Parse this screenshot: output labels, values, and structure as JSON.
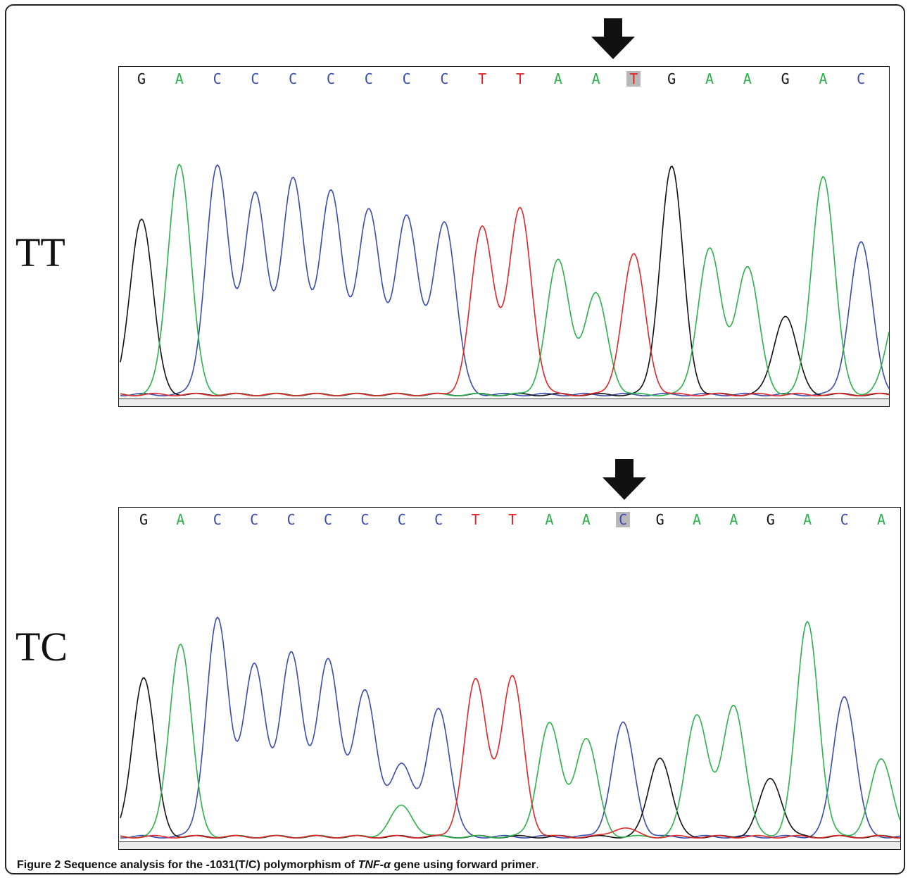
{
  "caption": {
    "label": "Figure 2",
    "text_before": "Sequence analysis for the -1031(T/C) polymorphism of",
    "gene": "TNF-α",
    "text_after": "gene using forward primer"
  },
  "colors": {
    "A": "#2bb24c",
    "C": "#3a4bb0",
    "G": "#111111",
    "T": "#e02626",
    "highlight": "#b8b8b8"
  },
  "chart_data": [
    {
      "type": "line",
      "genotype": "TT",
      "bases": [
        "G",
        "A",
        "C",
        "C",
        "C",
        "C",
        "C",
        "C",
        "C",
        "T",
        "T",
        "A",
        "A",
        "T",
        "G",
        "A",
        "A",
        "G",
        "A",
        "C",
        "A"
      ],
      "highlight_index": 13,
      "peak_heights": [
        0.58,
        0.76,
        0.75,
        0.66,
        0.71,
        0.67,
        0.61,
        0.59,
        0.57,
        0.55,
        0.61,
        0.44,
        0.33,
        0.46,
        0.75,
        0.48,
        0.42,
        0.26,
        0.72,
        0.5,
        0.3
      ]
    },
    {
      "type": "line",
      "genotype": "TC",
      "bases": [
        "G",
        "A",
        "C",
        "C",
        "C",
        "C",
        "C",
        "C",
        "C",
        "T",
        "T",
        "A",
        "A",
        "C",
        "G",
        "A",
        "A",
        "G",
        "A",
        "C",
        "A"
      ],
      "highlight_index": 13,
      "peak_heights": [
        0.52,
        0.63,
        0.71,
        0.56,
        0.6,
        0.58,
        0.48,
        0.24,
        0.42,
        0.51,
        0.52,
        0.37,
        0.32,
        0.37,
        0.26,
        0.4,
        0.43,
        0.19,
        0.7,
        0.46,
        0.25
      ],
      "secondary_peaks": [
        {
          "index": 7,
          "base": "A",
          "height": 0.1
        },
        {
          "index": 13,
          "base": "T",
          "height": 0.03
        }
      ]
    }
  ]
}
